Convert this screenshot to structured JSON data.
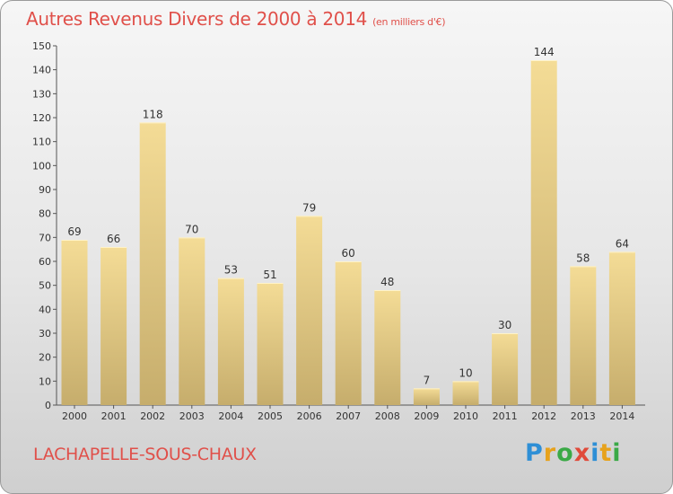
{
  "title": "Autres Revenus Divers de 2000 à 2014",
  "unit": "(en milliers d'€)",
  "commune": "LACHAPELLE-SOUS-CHAUX",
  "brand": "Proxiti",
  "colors": {
    "bar_light": "#f4dc96",
    "bar_dark": "#c6ad6c",
    "title": "#e0504a"
  },
  "chart_data": {
    "type": "bar",
    "categories": [
      "2000",
      "2001",
      "2002",
      "2003",
      "2004",
      "2005",
      "2006",
      "2007",
      "2008",
      "2009",
      "2010",
      "2011",
      "2012",
      "2013",
      "2014"
    ],
    "values": [
      69,
      66,
      118,
      70,
      53,
      51,
      79,
      60,
      48,
      7,
      10,
      30,
      144,
      58,
      64
    ],
    "ylim": [
      0,
      150
    ],
    "yticks": [
      0,
      10,
      20,
      30,
      40,
      50,
      60,
      70,
      80,
      90,
      100,
      110,
      120,
      130,
      140,
      150
    ],
    "grid": false,
    "data_labels": true
  }
}
